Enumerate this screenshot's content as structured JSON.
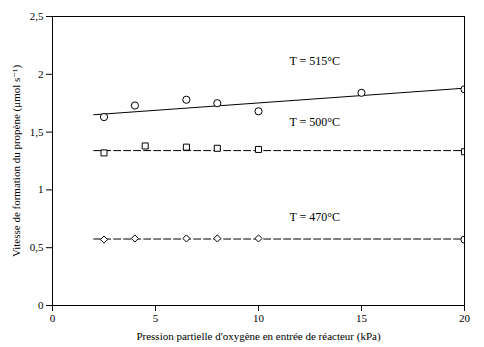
{
  "chart_data": {
    "type": "scatter",
    "xlabel": "Pression partielle d'oxygène en entrée de réacteur (kPa)",
    "ylabel": "Vitesse de formation du propène (μmol s⁻¹)",
    "xlim": [
      0,
      20
    ],
    "ylim": [
      0,
      2.5
    ],
    "xticks": [
      0,
      5,
      10,
      15,
      20
    ],
    "yticks": [
      0,
      {
        "value": 0.5,
        "label": "0,5"
      },
      1,
      {
        "value": 1.5,
        "label": "1,5"
      },
      2,
      {
        "value": 2.5,
        "label": "2,5"
      }
    ],
    "series": [
      {
        "type": "line",
        "color": "black",
        "line_style": "solid",
        "x": [
          2.0,
          20.0
        ],
        "values": [
          1.65,
          1.88
        ]
      },
      {
        "type": "scatter",
        "color": "black",
        "marker": "circle",
        "x": [
          2.5,
          4.0,
          6.5,
          8.0,
          10.0,
          15.0,
          20.0
        ],
        "values": [
          1.63,
          1.73,
          1.78,
          1.75,
          1.68,
          1.84,
          1.87
        ]
      },
      {
        "type": "line",
        "color": "black",
        "line_style": "dashed",
        "x": [
          2.0,
          20.0
        ],
        "values": [
          1.34,
          1.34
        ]
      },
      {
        "type": "scatter",
        "color": "black",
        "marker": "square",
        "x": [
          2.5,
          4.5,
          6.5,
          8.0,
          10.0,
          20.0
        ],
        "values": [
          1.32,
          1.38,
          1.37,
          1.36,
          1.35,
          1.33
        ]
      },
      {
        "type": "line",
        "color": "black",
        "line_style": "dashed",
        "x": [
          2.0,
          20.0
        ],
        "values": [
          0.575,
          0.575
        ]
      },
      {
        "type": "scatter",
        "color": "black",
        "marker": "diamond",
        "x": [
          2.5,
          4.0,
          6.5,
          8.0,
          10.0
        ],
        "values": [
          0.57,
          0.58,
          0.58,
          0.58,
          0.58
        ]
      },
      {
        "type": "scatter",
        "color": "black",
        "marker": "circle",
        "x": [
          20.0
        ],
        "values": [
          0.57
        ]
      }
    ],
    "annotations": [
      {
        "text": "T = 515°C",
        "x": 11.5,
        "y": 2.08
      },
      {
        "text": "T = 500°C",
        "x": 11.5,
        "y": 1.55
      },
      {
        "text": "T = 470°C",
        "x": 11.5,
        "y": 0.73
      }
    ]
  }
}
